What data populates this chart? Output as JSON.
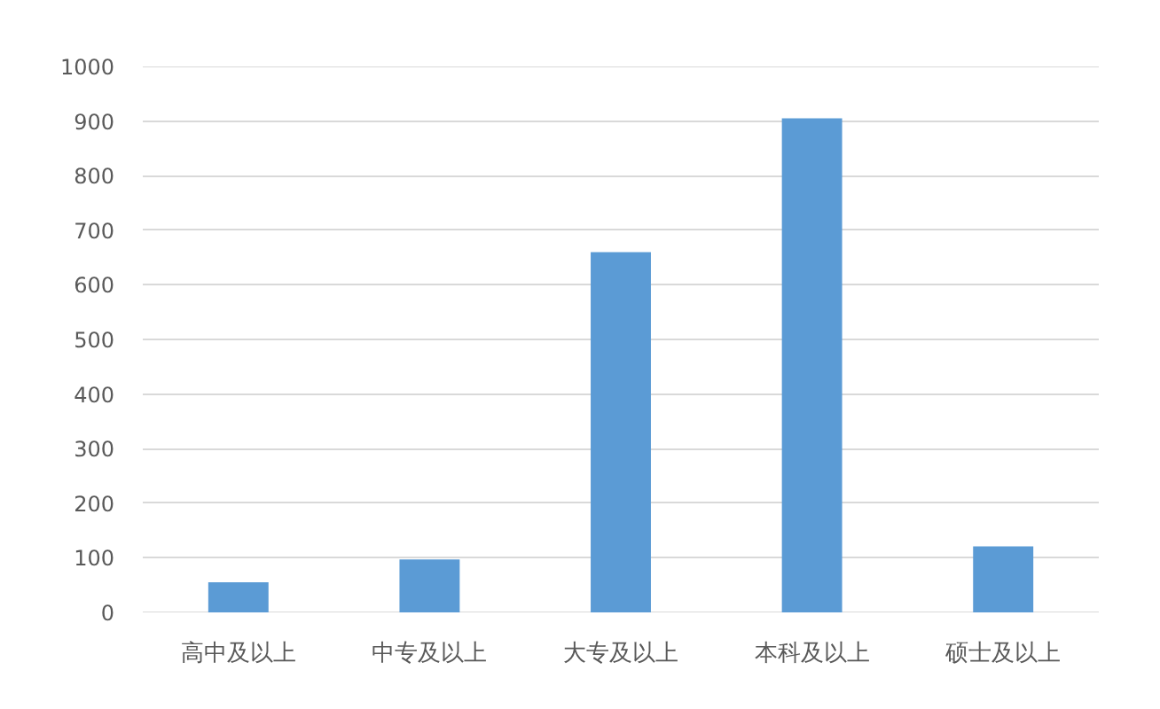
{
  "chart_data": {
    "type": "bar",
    "categories": [
      "高中及以上",
      "中专及以上",
      "大专及以上",
      "本科及以上",
      "硕士及以上"
    ],
    "values": [
      55,
      97,
      660,
      905,
      121
    ],
    "color": "#5b9bd5",
    "ylim": [
      0,
      1000
    ],
    "yticks": [
      0,
      100,
      200,
      300,
      400,
      500,
      600,
      700,
      800,
      900,
      1000
    ],
    "grid": "y"
  }
}
